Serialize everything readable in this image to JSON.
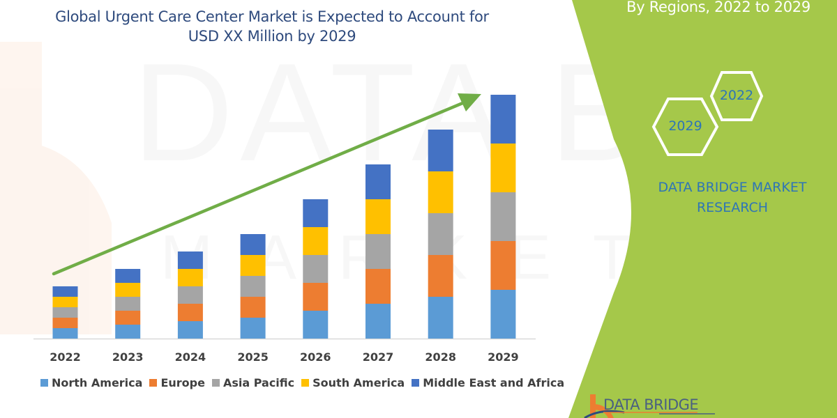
{
  "header": {
    "title_line1": "Global Urgent Care Center Market is Expected to Account for",
    "title_line2": "USD XX Million by 2029"
  },
  "side_panel": {
    "subtitle": "By Regions, 2022 to 2029",
    "hex_badges": [
      {
        "label": "2022"
      },
      {
        "label": "2029"
      }
    ],
    "brand_line1": "DATA BRIDGE MARKET",
    "brand_line2": "RESEARCH",
    "logo_text": "DATA BRIDGE",
    "colors": {
      "panel": "#a5c84a",
      "brand_text": "#2e75b6"
    }
  },
  "legend": [
    {
      "label": "North America",
      "color": "#5b9bd5"
    },
    {
      "label": "Europe",
      "color": "#ed7d31"
    },
    {
      "label": "Asia Pacific",
      "color": "#a5a5a5"
    },
    {
      "label": "South America",
      "color": "#ffc000"
    },
    {
      "label": "Middle East and Africa",
      "color": "#4472c4"
    }
  ],
  "chart_data": {
    "type": "bar",
    "stacked": true,
    "title": "Global Urgent Care Center Market is Expected to Account for USD XX Million by 2029",
    "subtitle": "By Regions, 2022 to 2029",
    "xlabel": "",
    "ylabel": "",
    "grid": false,
    "legend_position": "bottom",
    "y_axis_visible": false,
    "categories": [
      "2022",
      "2023",
      "2024",
      "2025",
      "2026",
      "2027",
      "2028",
      "2029"
    ],
    "series": [
      {
        "name": "North America",
        "color": "#5b9bd5",
        "values": [
          3,
          4,
          5,
          6,
          8,
          10,
          12,
          14
        ]
      },
      {
        "name": "Europe",
        "color": "#ed7d31",
        "values": [
          3,
          4,
          5,
          6,
          8,
          10,
          12,
          14
        ]
      },
      {
        "name": "Asia Pacific",
        "color": "#a5a5a5",
        "values": [
          3,
          4,
          5,
          6,
          8,
          10,
          12,
          14
        ]
      },
      {
        "name": "South America",
        "color": "#ffc000",
        "values": [
          3,
          4,
          5,
          6,
          8,
          10,
          12,
          14
        ]
      },
      {
        "name": "Middle East and Africa",
        "color": "#4472c4",
        "values": [
          3,
          4,
          5,
          6,
          8,
          10,
          12,
          14
        ]
      }
    ],
    "annotations": [
      {
        "type": "trend-arrow",
        "color": "#70ad47",
        "from": "2022",
        "to": "2029"
      }
    ]
  }
}
